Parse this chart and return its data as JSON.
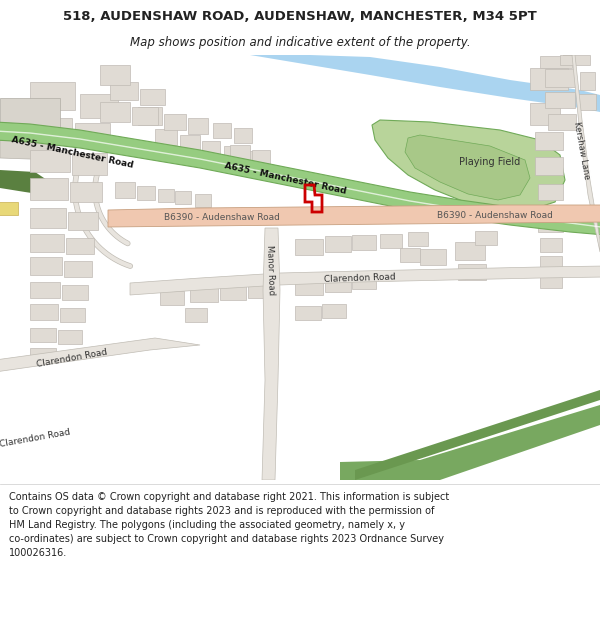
{
  "title_line1": "518, AUDENSHAW ROAD, AUDENSHAW, MANCHESTER, M34 5PT",
  "title_line2": "Map shows position and indicative extent of the property.",
  "footer_lines": [
    "Contains OS data © Crown copyright and database right 2021. This information is subject to Crown copyright and database rights 2023 and is reproduced with the permission of",
    "HM Land Registry. The polygons (including the associated geometry, namely x, y co-ordinates) are subject to Crown copyright and database rights 2023 Ordnance Survey",
    "100026316."
  ],
  "map_bg": "#f2f0ec",
  "road_salmon_color": "#f0c8b0",
  "road_salmon_outline": "#c8a080",
  "road_green_color": "#96cc80",
  "road_green_outline": "#70aa58",
  "building_color": "#e0dbd4",
  "building_outline": "#c0bbb4",
  "water_color": "#aad4f0",
  "green_area_light": "#c0d8a8",
  "green_area_dark": "#78a860",
  "green_park_color": "#90b870",
  "playing_field_color": "#b8d49a",
  "white": "#ffffff",
  "dark_green_patch": "#5a8040",
  "yellow_road": "#e8d878",
  "yellow_road_outline": "#c8b050",
  "property_color": "#cc0000",
  "text_dark": "#222222",
  "text_road": "#333333"
}
